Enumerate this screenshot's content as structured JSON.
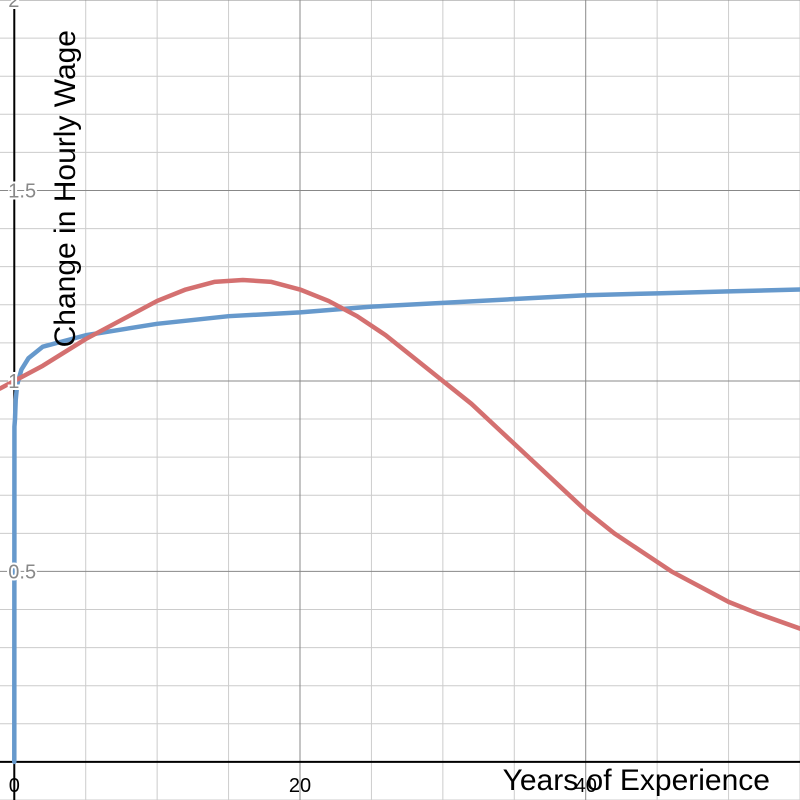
{
  "chart_data": {
    "type": "line",
    "title": "",
    "xlabel": "Years of Experience",
    "ylabel": "Change in Hourly Wage",
    "xlim": [
      -1,
      55
    ],
    "ylim": [
      -0.1,
      2.0
    ],
    "grid": true,
    "x_tick_labels": [
      {
        "x": 0,
        "label": "0"
      },
      {
        "x": 20,
        "label": "20"
      },
      {
        "x": 40,
        "label": "40"
      }
    ],
    "y_tick_labels": [
      {
        "y": 0.5,
        "label": "0.5"
      },
      {
        "y": 1,
        "label": "1"
      },
      {
        "y": 1.5,
        "label": "1.5"
      },
      {
        "y": 2,
        "label": "2"
      }
    ],
    "series": [
      {
        "color": "#6699cc",
        "x": [
          0.0,
          0.01,
          0.05,
          0.1,
          0.2,
          0.5,
          1,
          2,
          5,
          10,
          15,
          20,
          25,
          30,
          35,
          40,
          45,
          50,
          55
        ],
        "y": [
          0.0,
          0.88,
          0.9,
          0.95,
          0.99,
          1.03,
          1.06,
          1.09,
          1.12,
          1.15,
          1.17,
          1.18,
          1.195,
          1.205,
          1.215,
          1.225,
          1.23,
          1.235,
          1.24
        ]
      },
      {
        "color": "#d47070",
        "x": [
          -1,
          0,
          2,
          5,
          8,
          10,
          12,
          14,
          16,
          18,
          20,
          22,
          24,
          26,
          28,
          30,
          32,
          34,
          36,
          38,
          40,
          42,
          44,
          46,
          48,
          50,
          52,
          55
        ],
        "y": [
          0.98,
          1.0,
          1.04,
          1.11,
          1.17,
          1.21,
          1.24,
          1.26,
          1.265,
          1.26,
          1.24,
          1.21,
          1.17,
          1.12,
          1.06,
          1.0,
          0.94,
          0.87,
          0.8,
          0.73,
          0.66,
          0.6,
          0.55,
          0.5,
          0.46,
          0.42,
          0.39,
          0.35
        ]
      }
    ]
  }
}
